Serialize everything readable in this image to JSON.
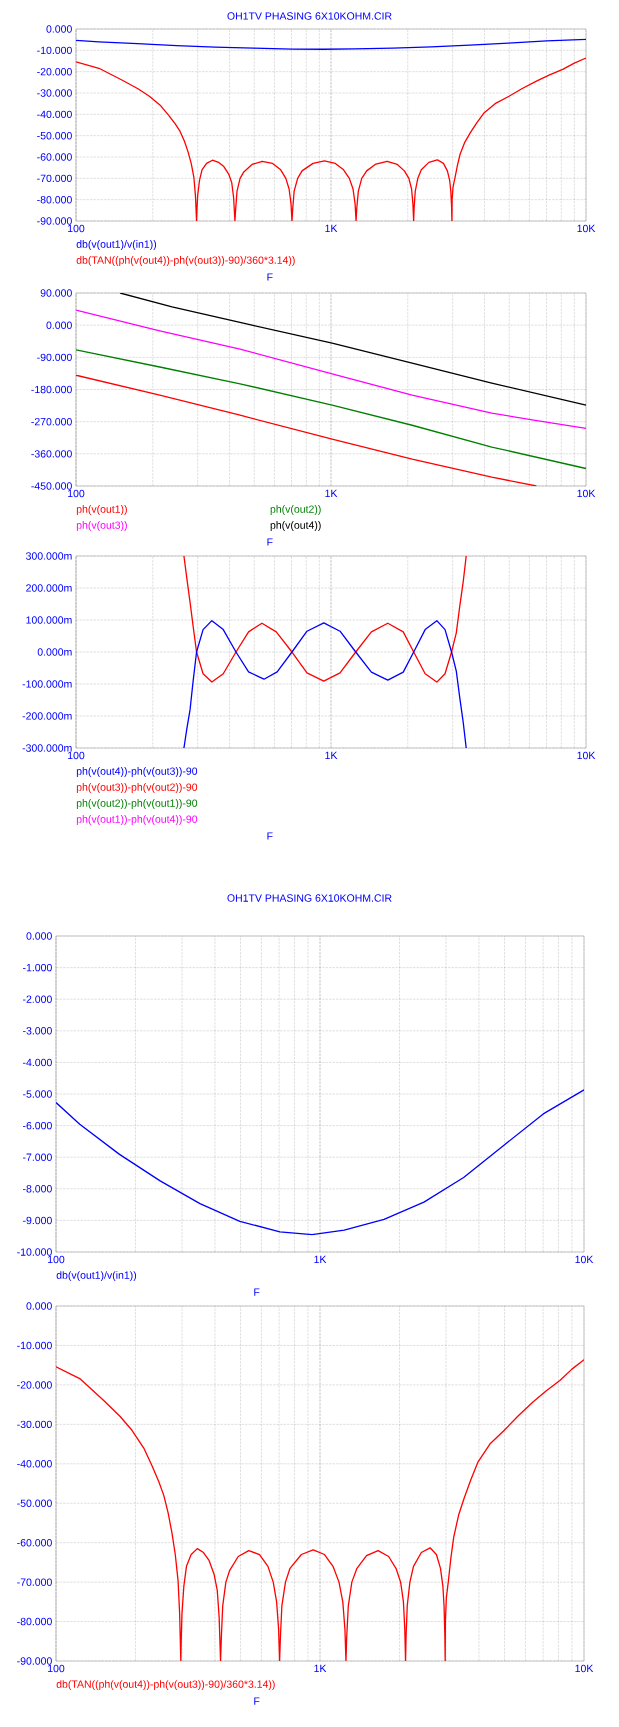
{
  "chart_data": [
    {
      "type": "line",
      "title": "OH1TV PHASING 6X10KOHM.CIR",
      "xlabel": "F",
      "log": "x",
      "grid": true,
      "legend": "bottom",
      "xlim": [
        100,
        10000
      ],
      "xticks": [
        {
          "value": 100,
          "label": "100"
        },
        {
          "value": 1000,
          "label": "1K"
        },
        {
          "value": 10000,
          "label": "10K"
        }
      ],
      "ylim": [
        -90,
        0
      ],
      "yticks": [
        {
          "value": -90,
          "label": "-90.000"
        },
        {
          "value": -80,
          "label": "-80.000"
        },
        {
          "value": -70,
          "label": "-70.000"
        },
        {
          "value": -60,
          "label": "-60.000"
        },
        {
          "value": -50,
          "label": "-50.000"
        },
        {
          "value": -40,
          "label": "-40.000"
        },
        {
          "value": -30,
          "label": "-30.000"
        },
        {
          "value": -20,
          "label": "-20.000"
        },
        {
          "value": -10,
          "label": "-10.000"
        },
        {
          "value": 0,
          "label": "0.000"
        }
      ],
      "series": [
        {
          "name": "db(v(out1)/v(in1))",
          "color": "#0000ff",
          "x": [
            100,
            123,
            174,
            248,
            351,
            497,
            705,
            933,
            1235,
            1748,
            2475,
            3500,
            4960,
            7010,
            10000
          ],
          "values": [
            -5.3,
            -6,
            -6.9,
            -7.8,
            -8.5,
            -9,
            -9.4,
            -9.5,
            -9.3,
            -9,
            -8.4,
            -7.6,
            -6.6,
            -5.6,
            -4.9
          ]
        },
        {
          "name": "db(TAN((ph(v(out4))-ph(v(out3))-90)/360*3.14))",
          "color": "#ff0000",
          "x": [
            100,
            123,
            152,
            175,
            194,
            215,
            231,
            245,
            256,
            266,
            275,
            283,
            290,
            294,
            297,
            298,
            300,
            305,
            312,
            325,
            343,
            362,
            380,
            397,
            408,
            415,
            420,
            423,
            428,
            440,
            455,
            490,
            537,
            590,
            635,
            665,
            685,
            697,
            703,
            708,
            717,
            740,
            770,
            850,
            942,
            1040,
            1120,
            1180,
            1220,
            1243,
            1254,
            1262,
            1280,
            1320,
            1380,
            1500,
            1660,
            1820,
            1940,
            2020,
            2070,
            2095,
            2109,
            2118,
            2140,
            2190,
            2260,
            2420,
            2612,
            2760,
            2860,
            2920,
            2950,
            2970,
            2980,
            2985,
            3010,
            3064,
            3130,
            3210,
            3350,
            3520,
            3730,
            3970,
            4400,
            4990,
            5600,
            6390,
            7200,
            8100,
            9000,
            10000
          ],
          "values": [
            -15.4,
            -18.4,
            -24,
            -28,
            -31.5,
            -36,
            -40.5,
            -44.5,
            -48,
            -52.5,
            -57.6,
            -63,
            -69.7,
            -78,
            -90,
            -85,
            -78,
            -71,
            -66,
            -63,
            -61.5,
            -62.5,
            -64.5,
            -68,
            -72,
            -79,
            -90,
            -84,
            -76,
            -70,
            -67,
            -63.5,
            -62,
            -63,
            -66,
            -70,
            -75,
            -82,
            -90,
            -84,
            -76,
            -70,
            -66.5,
            -63,
            -61.8,
            -63,
            -66,
            -70,
            -75,
            -82,
            -90,
            -84,
            -76,
            -70,
            -66.5,
            -63.3,
            -62,
            -63.5,
            -66.5,
            -70,
            -75,
            -82,
            -90,
            -84,
            -76,
            -70,
            -66,
            -62.5,
            -61.3,
            -63,
            -66.5,
            -71,
            -76,
            -83,
            -90,
            -80,
            -74,
            -69.7,
            -64,
            -58.6,
            -53,
            -48.6,
            -44,
            -39.5,
            -35,
            -31.5,
            -28,
            -24.4,
            -21.5,
            -18.9,
            -16,
            -13.6
          ]
        }
      ]
    },
    {
      "type": "line",
      "xlabel": "F",
      "log": "x",
      "grid": true,
      "legend": "bottom",
      "xlim": [
        100,
        10000
      ],
      "xticks": [
        {
          "value": 100,
          "label": "100"
        },
        {
          "value": 1000,
          "label": "1K"
        },
        {
          "value": 10000,
          "label": "10K"
        }
      ],
      "ylim": [
        -450,
        90
      ],
      "yticks": [
        {
          "value": -450,
          "label": "-450.000"
        },
        {
          "value": -360,
          "label": "-360.000"
        },
        {
          "value": -270,
          "label": "-270.000"
        },
        {
          "value": -180,
          "label": "-180.000"
        },
        {
          "value": -90,
          "label": "-90.000"
        },
        {
          "value": 0,
          "label": "0.000"
        },
        {
          "value": 90,
          "label": "90.000"
        }
      ],
      "series": [
        {
          "name": "ph(v(out1))",
          "color": "#ff0000",
          "x": [
            100,
            213,
            440,
            1010,
            2080,
            4270,
            6390
          ],
          "values": [
            -140,
            -196,
            -252,
            -319,
            -375,
            -425,
            -450
          ]
        },
        {
          "name": "ph(v(out2))",
          "color": "#008000",
          "x": [
            100,
            213,
            440,
            1010,
            2080,
            4270,
            10000
          ],
          "values": [
            -69,
            -117,
            -164,
            -224,
            -280,
            -341,
            -401
          ]
        },
        {
          "name": "ph(v(out3))",
          "color": "#ff00ff",
          "x": [
            100,
            213,
            440,
            1010,
            2080,
            4270,
            6150,
            10000
          ],
          "values": [
            42,
            -16,
            -67,
            -136,
            -196,
            -246,
            -265,
            -289
          ]
        },
        {
          "name": "ph(v(out4))",
          "color": "#000000",
          "x": [
            149,
            238,
            490,
            1010,
            2080,
            4270,
            10000
          ],
          "values": [
            90,
            51,
            0,
            -50,
            -106,
            -162,
            -224
          ]
        }
      ]
    },
    {
      "type": "line",
      "xlabel": "F",
      "log": "x",
      "grid": true,
      "legend": "bottom",
      "xlim": [
        100,
        10000
      ],
      "xticks": [
        {
          "value": 100,
          "label": "100"
        },
        {
          "value": 1000,
          "label": "1K"
        },
        {
          "value": 10000,
          "label": "10K"
        }
      ],
      "ylim": [
        -300,
        300
      ],
      "yticks": [
        {
          "value": -300,
          "label": "-300.000m"
        },
        {
          "value": -200,
          "label": "-200.000m"
        },
        {
          "value": -100,
          "label": "-100.000m"
        },
        {
          "value": 0,
          "label": "0.000m"
        },
        {
          "value": 100,
          "label": "100.000m"
        },
        {
          "value": 200,
          "label": "200.000m"
        },
        {
          "value": 300,
          "label": "300.000m"
        }
      ],
      "series": [
        {
          "name": "ph(v(out4))-ph(v(out3))-90",
          "color": "#0000ff",
          "x": [
            265,
            272,
            280,
            288,
            297,
            315,
            341,
            378,
            424,
            475,
            546,
            615,
            703,
            805,
            937,
            1085,
            1250,
            1440,
            1670,
            1920,
            2110,
            2340,
            2600,
            2800,
            2970,
            3100,
            3200,
            3300,
            3390
          ],
          "values": [
            -300,
            -240,
            -181,
            -90,
            0,
            70,
            98,
            70,
            0,
            -62,
            -85,
            -62,
            0,
            65,
            91,
            65,
            0,
            -63,
            -88,
            -63,
            0,
            70,
            98,
            70,
            0,
            -60,
            -144,
            -220,
            -300
          ]
        },
        {
          "name": "ph(v(out3))-ph(v(out2))-90",
          "color": "#ff0000",
          "x": [
            265,
            272,
            280,
            288,
            297,
            315,
            341,
            378,
            424,
            475,
            536,
            610,
            703,
            805,
            937,
            1085,
            1250,
            1440,
            1670,
            1920,
            2110,
            2340,
            2600,
            2800,
            2970,
            3100,
            3200,
            3300,
            3390
          ],
          "values": [
            300,
            230,
            156,
            80,
            0,
            -68,
            -94,
            -68,
            0,
            63,
            90,
            63,
            0,
            -65,
            -91,
            -65,
            0,
            63,
            90,
            63,
            0,
            -68,
            -94,
            -68,
            0,
            60,
            144,
            220,
            300
          ]
        },
        {
          "name": "ph(v(out2))-ph(v(out1))-90",
          "color": "#008000",
          "values": [
            null,
            null
          ]
        },
        {
          "name": "ph(v(out1))-ph(v(out4))-90",
          "color": "#ff00ff",
          "values": [
            null,
            null
          ]
        }
      ]
    },
    {
      "type": "line",
      "title": "OH1TV PHASING 6X10KOHM.CIR",
      "xlabel": "F",
      "log": "x",
      "grid": true,
      "legend": "bottom",
      "xlim": [
        100,
        10000
      ],
      "xticks": [
        {
          "value": 100,
          "label": "100"
        },
        {
          "value": 1000,
          "label": "1K"
        },
        {
          "value": 10000,
          "label": "10K"
        }
      ],
      "ylim": [
        -10,
        0
      ],
      "yticks": [
        {
          "value": -10,
          "label": "-10.000"
        },
        {
          "value": -9,
          "label": "-9.000"
        },
        {
          "value": -8,
          "label": "-8.000"
        },
        {
          "value": -7,
          "label": "-7.000"
        },
        {
          "value": -6,
          "label": "-6.000"
        },
        {
          "value": -5,
          "label": "-5.000"
        },
        {
          "value": -4,
          "label": "-4.000"
        },
        {
          "value": -3,
          "label": "-3.000"
        },
        {
          "value": -2,
          "label": "-2.000"
        },
        {
          "value": -1,
          "label": "-1.000"
        },
        {
          "value": 0,
          "label": "0.000"
        }
      ],
      "series": [
        {
          "name": "db(v(out1)/v(in1))",
          "color": "#0000ff",
          "x": [
            100,
            123,
            174,
            248,
            351,
            497,
            705,
            933,
            1235,
            1748,
            2475,
            3500,
            4960,
            7010,
            10000
          ],
          "values": [
            -5.27,
            -5.96,
            -6.91,
            -7.75,
            -8.47,
            -9.03,
            -9.36,
            -9.45,
            -9.31,
            -8.97,
            -8.42,
            -7.64,
            -6.63,
            -5.63,
            -4.87
          ]
        }
      ]
    },
    {
      "type": "line",
      "xlabel": "F",
      "log": "x",
      "grid": true,
      "legend": "bottom",
      "xlim": [
        100,
        10000
      ],
      "xticks": [
        {
          "value": 100,
          "label": "100"
        },
        {
          "value": 1000,
          "label": "1K"
        },
        {
          "value": 10000,
          "label": "10K"
        }
      ],
      "ylim": [
        -90,
        0
      ],
      "yticks": [
        {
          "value": -90,
          "label": "-90.000"
        },
        {
          "value": -80,
          "label": "-80.000"
        },
        {
          "value": -70,
          "label": "-70.000"
        },
        {
          "value": -60,
          "label": "-60.000"
        },
        {
          "value": -50,
          "label": "-50.000"
        },
        {
          "value": -40,
          "label": "-40.000"
        },
        {
          "value": -30,
          "label": "-30.000"
        },
        {
          "value": -20,
          "label": "-20.000"
        },
        {
          "value": -10,
          "label": "-10.000"
        },
        {
          "value": 0,
          "label": "0.000"
        }
      ],
      "series": [
        {
          "name": "db(TAN((ph(v(out4))-ph(v(out3))-90)/360*3.14))",
          "color": "#ff0000",
          "x": [
            100,
            123,
            152,
            175,
            194,
            215,
            231,
            245,
            256,
            266,
            275,
            283,
            290,
            294,
            297,
            298,
            300,
            305,
            312,
            325,
            343,
            362,
            380,
            397,
            408,
            415,
            420,
            423,
            428,
            440,
            455,
            490,
            537,
            590,
            635,
            665,
            685,
            697,
            703,
            708,
            717,
            740,
            770,
            850,
            942,
            1040,
            1120,
            1180,
            1220,
            1243,
            1254,
            1262,
            1280,
            1320,
            1380,
            1500,
            1660,
            1820,
            1940,
            2020,
            2070,
            2095,
            2109,
            2118,
            2140,
            2190,
            2260,
            2420,
            2612,
            2760,
            2860,
            2920,
            2950,
            2970,
            2980,
            2985,
            3010,
            3064,
            3130,
            3210,
            3350,
            3520,
            3730,
            3970,
            4400,
            4990,
            5600,
            6390,
            7200,
            8100,
            9000,
            10000
          ],
          "values": [
            -15.4,
            -18.4,
            -24,
            -28,
            -31.5,
            -36,
            -40.5,
            -44.5,
            -48,
            -52.5,
            -57.6,
            -63,
            -69.7,
            -78,
            -90,
            -85,
            -78,
            -71,
            -66,
            -63,
            -61.5,
            -62.5,
            -64.5,
            -68,
            -72,
            -79,
            -90,
            -84,
            -76,
            -70,
            -67,
            -63.5,
            -62,
            -63,
            -66,
            -70,
            -75,
            -82,
            -90,
            -84,
            -76,
            -70,
            -66.5,
            -63,
            -61.8,
            -63,
            -66,
            -70,
            -75,
            -82,
            -90,
            -84,
            -76,
            -70,
            -66.5,
            -63.3,
            -62,
            -63.5,
            -66.5,
            -70,
            -75,
            -82,
            -90,
            -84,
            -76,
            -70,
            -66,
            -62.5,
            -61.3,
            -63,
            -66.5,
            -71,
            -76,
            -83,
            -90,
            -80,
            -74,
            -69.7,
            -64,
            -58.6,
            -53,
            -48.6,
            -44,
            -39.5,
            -35,
            -31.5,
            -28,
            -24.4,
            -21.5,
            -18.9,
            -16,
            -13.6
          ]
        }
      ]
    }
  ]
}
